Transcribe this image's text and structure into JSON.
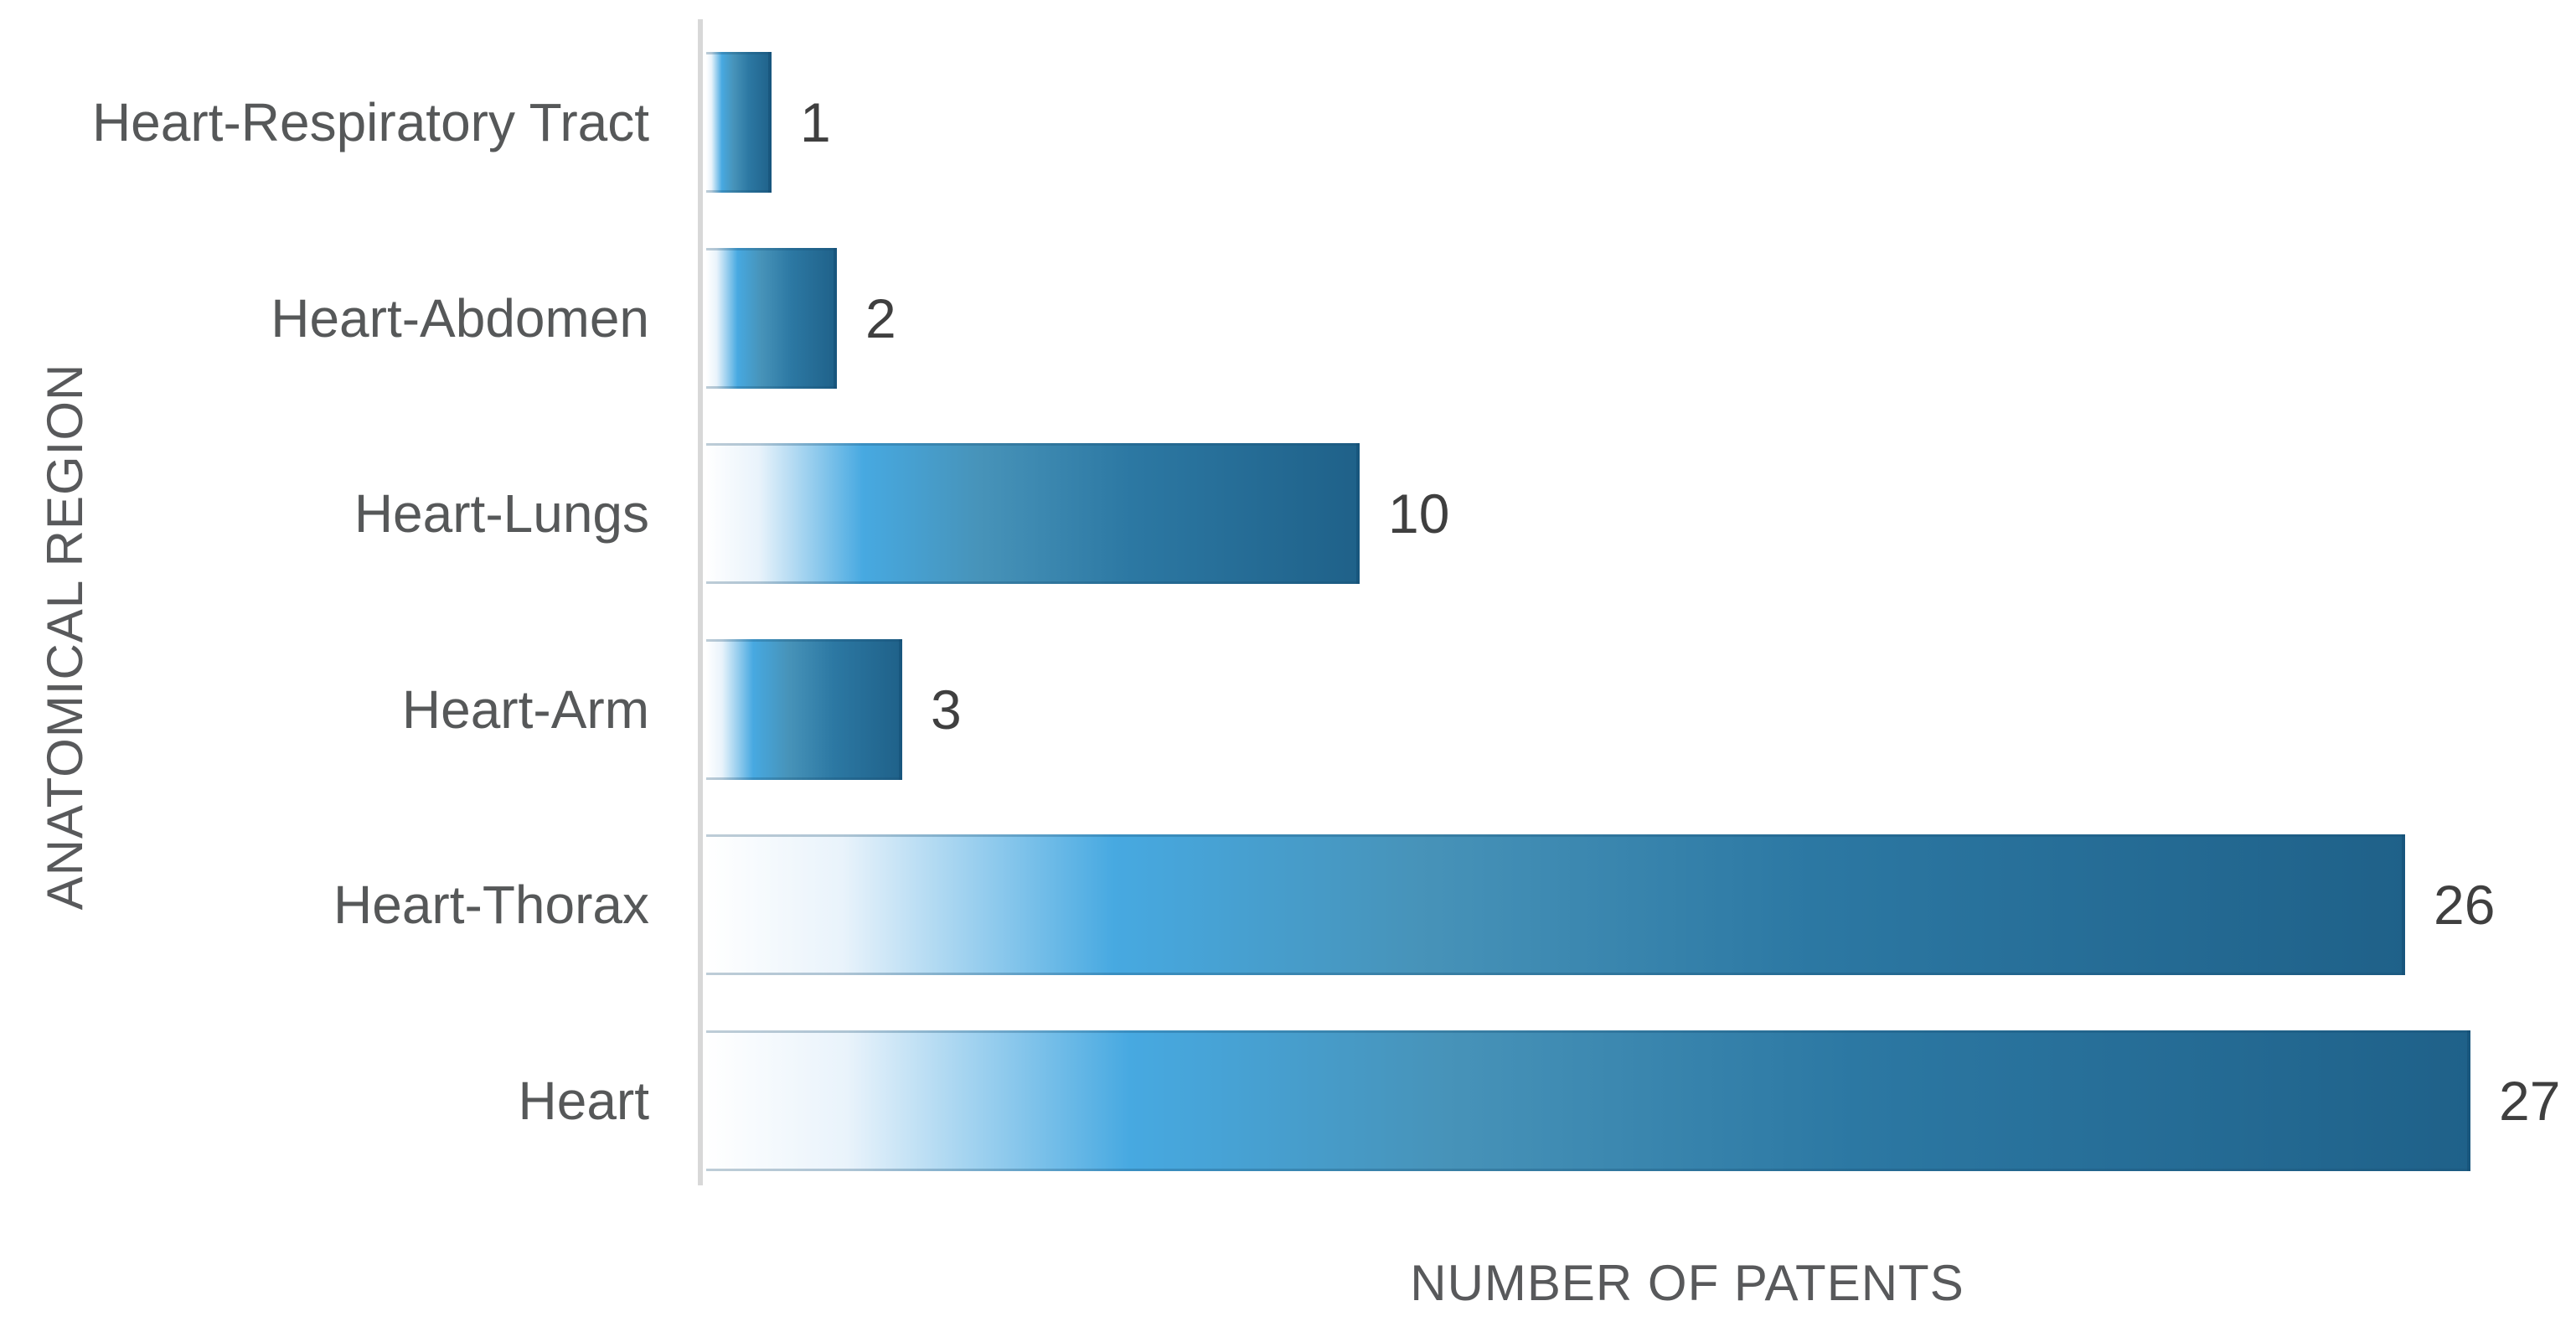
{
  "chart_data": {
    "type": "bar",
    "orientation": "horizontal",
    "title": "",
    "xlabel": "NUMBER OF PATENTS",
    "ylabel": "ANATOMICAL REGION",
    "categories": [
      "Heart-Respiratory Tract",
      "Heart-Abdomen",
      "Heart-Lungs",
      "Heart-Arm",
      "Heart-Thorax",
      "Heart"
    ],
    "values": [
      1,
      2,
      10,
      3,
      26,
      27
    ],
    "value_labels": [
      "1",
      "2",
      "10",
      "3",
      "26",
      "27"
    ],
    "xlim": [
      0,
      27
    ],
    "grid": false,
    "legend": "none",
    "bar_gradient_stops": [
      {
        "pos": 0,
        "color": "#ffffff"
      },
      {
        "pos": 8,
        "color": "#e9f3fb"
      },
      {
        "pos": 24,
        "color": "#47a9e1"
      },
      {
        "pos": 42,
        "color": "#4793b9"
      },
      {
        "pos": 65,
        "color": "#2c78a3"
      },
      {
        "pos": 100,
        "color": "#1f6189"
      }
    ]
  },
  "colors": {
    "axis_line": "#d8d8d8",
    "category_label": "#565859",
    "value_label": "#3f3f3f",
    "axis_title": "#58595b",
    "background": "#ffffff"
  }
}
